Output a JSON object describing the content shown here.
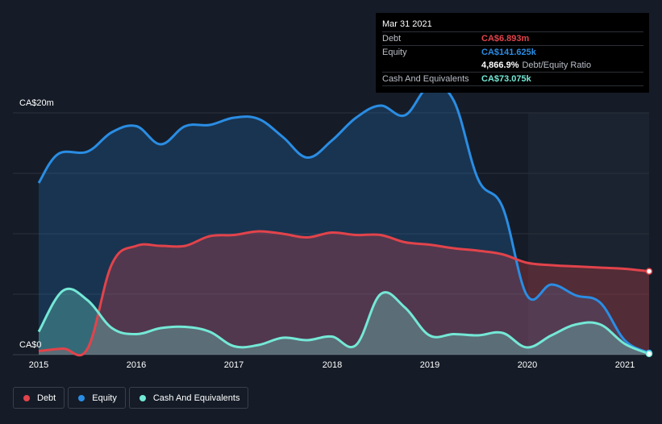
{
  "chart_data": {
    "type": "area",
    "y_axis": {
      "top_label": "CA$20m",
      "bottom_label": "CA$0",
      "ylim": [
        0,
        20
      ]
    },
    "x_ticks": [
      "2015",
      "2016",
      "2017",
      "2018",
      "2019",
      "2020",
      "2021"
    ],
    "xlim": [
      2015.0,
      2021.25
    ],
    "grid": true,
    "legend_position": "bottom-left",
    "series": [
      {
        "name": "Debt",
        "color": "#e2434b",
        "points": [
          [
            2015.0,
            0.3
          ],
          [
            2015.25,
            0.5
          ],
          [
            2015.5,
            0.5
          ],
          [
            2015.75,
            7.5
          ],
          [
            2016.0,
            9.0
          ],
          [
            2016.25,
            9.0
          ],
          [
            2016.5,
            9.0
          ],
          [
            2016.75,
            9.8
          ],
          [
            2017.0,
            9.9
          ],
          [
            2017.25,
            10.2
          ],
          [
            2017.5,
            10.0
          ],
          [
            2017.75,
            9.7
          ],
          [
            2018.0,
            10.1
          ],
          [
            2018.25,
            9.9
          ],
          [
            2018.5,
            9.9
          ],
          [
            2018.75,
            9.3
          ],
          [
            2019.0,
            9.1
          ],
          [
            2019.25,
            8.8
          ],
          [
            2019.5,
            8.6
          ],
          [
            2019.75,
            8.3
          ],
          [
            2020.0,
            7.6
          ],
          [
            2020.25,
            7.4
          ],
          [
            2020.5,
            7.3
          ],
          [
            2020.75,
            7.2
          ],
          [
            2021.0,
            7.1
          ],
          [
            2021.25,
            6.893
          ]
        ]
      },
      {
        "name": "Equity",
        "color": "#2a8de4",
        "points": [
          [
            2015.0,
            14.2
          ],
          [
            2015.2,
            16.6
          ],
          [
            2015.5,
            16.8
          ],
          [
            2015.75,
            18.4
          ],
          [
            2016.0,
            18.9
          ],
          [
            2016.25,
            17.4
          ],
          [
            2016.5,
            18.9
          ],
          [
            2016.75,
            19.0
          ],
          [
            2017.0,
            19.6
          ],
          [
            2017.25,
            19.5
          ],
          [
            2017.5,
            18.0
          ],
          [
            2017.75,
            16.3
          ],
          [
            2018.0,
            17.7
          ],
          [
            2018.25,
            19.6
          ],
          [
            2018.5,
            20.6
          ],
          [
            2018.75,
            19.8
          ],
          [
            2019.0,
            22.2
          ],
          [
            2019.25,
            21.0
          ],
          [
            2019.5,
            14.5
          ],
          [
            2019.75,
            12.2
          ],
          [
            2020.0,
            4.9
          ],
          [
            2020.25,
            5.8
          ],
          [
            2020.5,
            4.9
          ],
          [
            2020.75,
            4.3
          ],
          [
            2021.0,
            1.2
          ],
          [
            2021.25,
            0.141625
          ]
        ]
      },
      {
        "name": "Cash And Equivalents",
        "color": "#74e8d6",
        "points": [
          [
            2015.0,
            1.9
          ],
          [
            2015.25,
            5.3
          ],
          [
            2015.5,
            4.5
          ],
          [
            2015.75,
            2.2
          ],
          [
            2016.0,
            1.7
          ],
          [
            2016.25,
            2.2
          ],
          [
            2016.5,
            2.3
          ],
          [
            2016.75,
            1.9
          ],
          [
            2017.0,
            0.7
          ],
          [
            2017.25,
            0.8
          ],
          [
            2017.5,
            1.4
          ],
          [
            2017.75,
            1.2
          ],
          [
            2018.0,
            1.5
          ],
          [
            2018.25,
            0.8
          ],
          [
            2018.5,
            5.0
          ],
          [
            2018.75,
            3.9
          ],
          [
            2019.0,
            1.6
          ],
          [
            2019.25,
            1.7
          ],
          [
            2019.5,
            1.6
          ],
          [
            2019.75,
            1.8
          ],
          [
            2020.0,
            0.6
          ],
          [
            2020.25,
            1.6
          ],
          [
            2020.5,
            2.5
          ],
          [
            2020.75,
            2.5
          ],
          [
            2021.0,
            0.9
          ],
          [
            2021.25,
            0.073075
          ]
        ]
      }
    ]
  },
  "tooltip": {
    "date": "Mar 31 2021",
    "rows": [
      {
        "label": "Debt",
        "value": "CA$6.893m",
        "color": "#e2434b"
      },
      {
        "label": "Equity",
        "value": "CA$141.625k",
        "color": "#2a8de4"
      },
      {
        "label": "",
        "value": "4,866.9%",
        "extra": "Debt/Equity Ratio",
        "color": "#ffffff"
      },
      {
        "label": "Cash And Equivalents",
        "value": "CA$73.075k",
        "color": "#74e8d6"
      }
    ]
  },
  "legend": [
    {
      "label": "Debt",
      "color": "#e2434b"
    },
    {
      "label": "Equity",
      "color": "#2a8de4"
    },
    {
      "label": "Cash And Equivalents",
      "color": "#74e8d6"
    }
  ]
}
